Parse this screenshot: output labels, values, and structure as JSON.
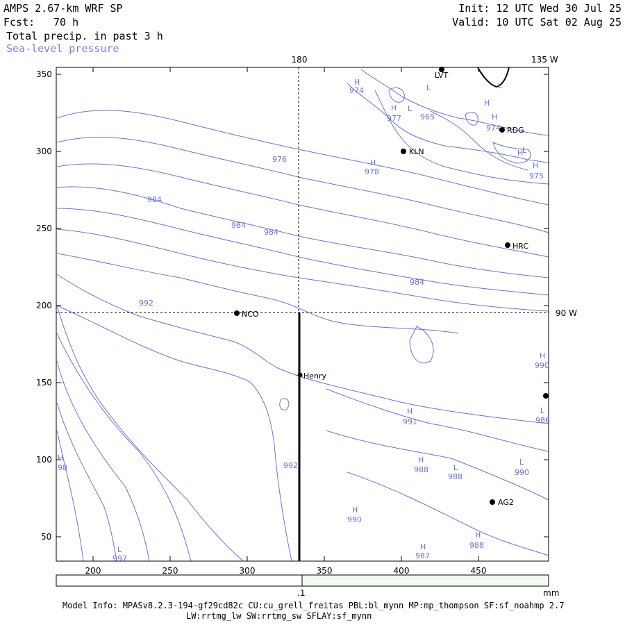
{
  "header": {
    "model": "AMPS 2.67-km WRF SP",
    "fcst_label": "Fcst:",
    "fcst_value": "70 h",
    "field": "Total precip. in past 3 h",
    "overlay": "Sea-level pressure",
    "init": "Init: 12 UTC Wed 30 Jul 25",
    "valid": "Valid: 10 UTC Sat 02 Aug 25"
  },
  "colors": {
    "contour": "#6a70e0",
    "overlay_label": "#7b80e0",
    "colorbar_fill": "#f2faf2"
  },
  "map": {
    "x_ticks": [
      "200",
      "250",
      "300",
      "350",
      "400",
      "450"
    ],
    "y_ticks": [
      "350",
      "300",
      "250",
      "200",
      "150",
      "100",
      "50"
    ],
    "longitude_labels": {
      "top_180": "180",
      "top_135w": "135 W",
      "right_90w": "90 W"
    },
    "stations": [
      {
        "id": "LVT",
        "label": "LVT"
      },
      {
        "id": "RDG",
        "label": "RDG"
      },
      {
        "id": "KLN",
        "label": "KLN"
      },
      {
        "id": "HRC",
        "label": "HRC"
      },
      {
        "id": "NCO",
        "label": "NCO"
      },
      {
        "id": "Henry",
        "label": "Henry"
      },
      {
        "id": "AG2",
        "label": "AG2"
      },
      {
        "id": "edge",
        "label": ""
      }
    ],
    "contour_labels": [
      "974",
      "977",
      "965",
      "974",
      "976",
      "978",
      "975",
      "984",
      "984",
      "984",
      "984",
      "992",
      "990",
      "991",
      "988",
      "988",
      "990",
      "990",
      "992",
      "988",
      "986",
      "987",
      "997",
      "98"
    ],
    "hl_markers": [
      "H",
      "H",
      "L",
      "L",
      "H",
      "H",
      "H",
      "H",
      "L",
      "H",
      "H",
      "L",
      "L",
      "H",
      "H",
      "H",
      "L",
      "H",
      "L",
      "H",
      "H",
      "L"
    ]
  },
  "colorbar": {
    "tick_label": ".1",
    "unit": "mm"
  },
  "footer": {
    "line1": "Model Info: MPASv8.2.3-194-gf29cd82c CU:cu_grell_freitas PBL:bl_mynn MP:mp_thompson SF:sf_noahmp 2.7",
    "line2": "LW:rrtmg_lw SW:rrtmg_sw SFLAY:sf_mynn"
  }
}
